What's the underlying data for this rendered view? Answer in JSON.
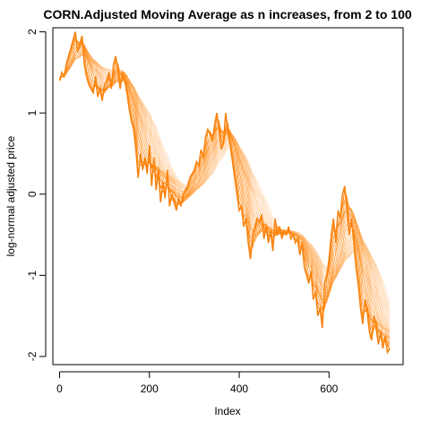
{
  "chart_data": {
    "type": "line",
    "title": "CORN.Adjusted Moving Average as n increases, from 2 to 100",
    "xlabel": "Index",
    "ylabel": "log-normal adjusted price",
    "xlim": [
      -15,
      765
    ],
    "ylim": [
      -2.1,
      2.05
    ],
    "xticks": [
      0,
      200,
      400,
      600
    ],
    "yticks": [
      -2,
      -1,
      0,
      1,
      2
    ],
    "grid": false,
    "legend": "none",
    "ma_window_range": [
      2,
      100
    ],
    "colors": {
      "price": "#8c8c8c",
      "ma_dark": "#ff7f00",
      "ma_light": "#ffd9b3"
    },
    "series": [
      {
        "x": [
          0,
          5,
          10,
          15,
          20,
          25,
          30,
          35,
          40,
          45,
          50,
          55,
          60,
          65,
          70,
          75,
          80,
          85,
          90,
          95,
          100,
          105,
          110,
          115,
          120,
          125,
          130,
          135,
          140,
          145,
          150,
          155,
          160,
          165,
          170,
          175,
          180,
          185,
          190,
          195,
          200,
          205,
          210,
          215,
          220,
          225,
          230,
          235,
          240,
          245,
          250,
          255,
          260,
          265,
          270,
          275,
          280,
          285,
          290,
          295,
          300,
          305,
          310,
          315,
          320,
          325,
          330,
          335,
          340,
          345,
          350,
          355,
          360,
          365,
          370,
          375,
          380,
          385,
          390,
          395,
          400,
          405,
          410,
          415,
          420,
          425,
          430,
          435,
          440,
          445,
          450,
          455,
          460,
          465,
          470,
          475,
          480,
          485,
          490,
          495,
          500,
          505,
          510,
          515,
          520,
          525,
          530,
          535,
          540,
          545,
          550,
          555,
          560,
          565,
          570,
          575,
          580,
          585,
          590,
          595,
          600,
          605,
          610,
          615,
          620,
          625,
          630,
          635,
          640,
          645,
          650,
          655,
          660,
          665,
          670,
          675,
          680,
          685,
          690,
          695,
          700,
          705,
          710,
          715,
          720,
          725,
          730,
          735
        ],
        "y": [
          1.4,
          1.5,
          1.45,
          1.6,
          1.7,
          1.8,
          1.9,
          2.0,
          1.75,
          1.85,
          1.95,
          1.6,
          1.45,
          1.35,
          1.3,
          1.25,
          1.45,
          1.2,
          1.3,
          1.15,
          1.35,
          1.4,
          1.5,
          1.3,
          1.6,
          1.7,
          1.5,
          1.3,
          1.5,
          1.4,
          1.25,
          1.05,
          0.9,
          0.8,
          0.55,
          0.2,
          0.5,
          0.3,
          0.45,
          0.25,
          0.6,
          0.1,
          0.45,
          0.05,
          0.3,
          -0.1,
          0.15,
          -0.05,
          0.3,
          -0.15,
          0.0,
          -0.1,
          -0.2,
          -0.05,
          -0.15,
          0.0,
          0.05,
          0.1,
          0.2,
          0.25,
          0.3,
          0.4,
          0.35,
          0.55,
          0.45,
          0.7,
          0.8,
          0.75,
          0.65,
          0.85,
          1.0,
          0.8,
          0.55,
          0.65,
          1.0,
          0.75,
          0.6,
          0.4,
          0.2,
          0.0,
          -0.2,
          -0.15,
          -0.4,
          -0.3,
          -0.6,
          -0.8,
          -0.5,
          -0.4,
          -0.3,
          -0.35,
          -0.25,
          -0.55,
          -0.4,
          -0.6,
          -0.45,
          -0.7,
          -0.3,
          -0.5,
          -0.4,
          -0.55,
          -0.45,
          -0.5,
          -0.4,
          -0.55,
          -0.5,
          -0.6,
          -0.55,
          -0.75,
          -0.6,
          -0.9,
          -1.0,
          -1.1,
          -0.95,
          -1.3,
          -1.2,
          -1.5,
          -1.4,
          -1.65,
          -1.1,
          -1.0,
          -0.8,
          -0.5,
          -0.3,
          -0.6,
          -0.2,
          -0.3,
          0.0,
          0.1,
          -0.2,
          -0.5,
          -0.3,
          -0.6,
          -0.9,
          -1.1,
          -1.4,
          -1.6,
          -1.3,
          -1.45,
          -1.7,
          -1.8,
          -1.5,
          -1.65,
          -1.85,
          -1.7,
          -1.9,
          -1.75,
          -1.95,
          -1.9
        ]
      }
    ]
  }
}
